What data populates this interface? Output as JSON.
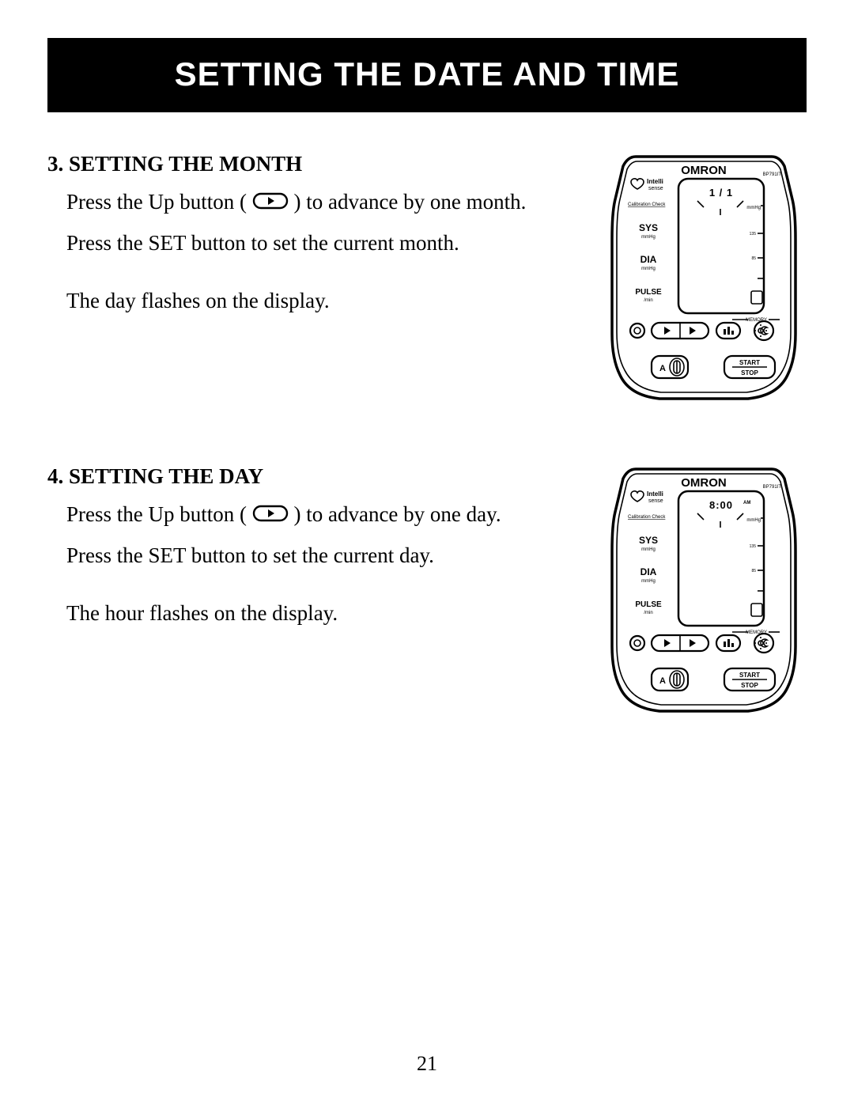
{
  "page": {
    "title": "SETTING THE DATE AND TIME",
    "number": "21",
    "background_color": "#ffffff",
    "title_bg": "#000000",
    "title_fg": "#ffffff",
    "text_color": "#000000"
  },
  "sections": [
    {
      "heading": "3. SETTING THE MONTH",
      "para1_pre": "Press the Up button (",
      "para1_post": ") to advance by one month.",
      "para2": "Press the SET button to set the current month.",
      "para3": "The day flashes on the display.",
      "device_time_display": "1 /  1",
      "device_time_ampm": ""
    },
    {
      "heading": "4. SETTING THE DAY",
      "para1_pre": "Press the Up button (",
      "para1_post": ") to advance by one day.",
      "para2": "Press the SET button to set the current day.",
      "para3": "The hour flashes on the display.",
      "device_time_display": "8:00",
      "device_time_ampm": "AM"
    }
  ],
  "device": {
    "brand": "OMRON",
    "model": "BP791IT",
    "intelli_1": "Intelli",
    "intelli_2": "sense",
    "calibration": "Calibration Check",
    "sys_label": "SYS",
    "sys_unit": "mmHg",
    "dia_label": "DIA",
    "dia_unit": "mmHg",
    "pulse_label": "PULSE",
    "pulse_unit": "/min",
    "scale_unit": "mmHg",
    "scale_135": "135",
    "scale_85": "85",
    "memory_label": "MEMORY",
    "start_label": "START",
    "stop_label": "STOP",
    "user_a": "A"
  }
}
